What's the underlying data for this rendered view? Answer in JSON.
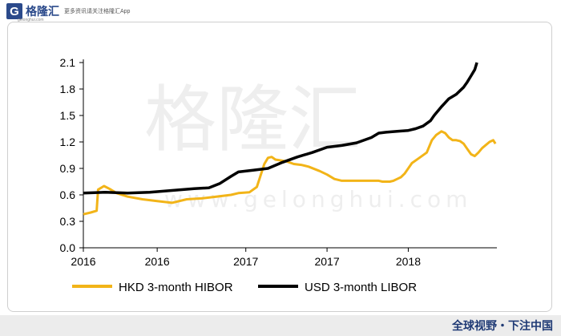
{
  "brand": {
    "name": "格隆汇",
    "tagline": "更多资讯请关注格隆汇App",
    "url": "gelonghui.com"
  },
  "watermark": {
    "cn": "格隆汇",
    "en": "www.gelonghui.com"
  },
  "footer": {
    "slogan": "全球视野・下注中国"
  },
  "chart_data": {
    "type": "line",
    "title": "",
    "xlabel": "",
    "ylabel": "",
    "ylim": [
      0,
      2.1
    ],
    "yticks": [
      "0.0",
      "0.3",
      "0.6",
      "0.9",
      "1.2",
      "1.5",
      "1.8",
      "2.1"
    ],
    "xticks": [
      "2016",
      "2016",
      "2017",
      "2017",
      "2018"
    ],
    "grid": false,
    "legend_position": "bottom",
    "colors": {
      "hibor": "#f2b418",
      "libor": "#000000"
    },
    "series": [
      {
        "name": "HKD 3-month HIBOR",
        "x": [
          0.0,
          0.1,
          0.18,
          0.2,
          0.28,
          0.35,
          0.45,
          0.6,
          0.8,
          1.0,
          1.2,
          1.4,
          1.6,
          1.8,
          2.0,
          2.1,
          2.25,
          2.35,
          2.45,
          2.5,
          2.55,
          2.6,
          2.75,
          2.85,
          2.95,
          3.05,
          3.2,
          3.3,
          3.4,
          3.5,
          3.6,
          3.75,
          3.85,
          3.95,
          4.0,
          4.05,
          4.1,
          4.15,
          4.2,
          4.25,
          4.3,
          4.35,
          4.45,
          4.55,
          4.65,
          4.72,
          4.78,
          4.85,
          4.9,
          4.95,
          5.0,
          5.05,
          5.1,
          5.15,
          5.2,
          5.25,
          5.3,
          5.35,
          5.4,
          5.5,
          5.55,
          5.58
        ],
        "values": [
          0.38,
          0.4,
          0.42,
          0.66,
          0.7,
          0.67,
          0.62,
          0.58,
          0.55,
          0.53,
          0.51,
          0.55,
          0.56,
          0.58,
          0.6,
          0.62,
          0.63,
          0.69,
          0.95,
          1.02,
          1.03,
          1.0,
          0.98,
          0.95,
          0.94,
          0.92,
          0.87,
          0.83,
          0.78,
          0.76,
          0.76,
          0.76,
          0.76,
          0.76,
          0.76,
          0.75,
          0.75,
          0.75,
          0.76,
          0.78,
          0.8,
          0.84,
          0.96,
          1.02,
          1.08,
          1.22,
          1.28,
          1.32,
          1.3,
          1.25,
          1.22,
          1.22,
          1.21,
          1.18,
          1.12,
          1.06,
          1.04,
          1.08,
          1.13,
          1.2,
          1.22,
          1.18
        ]
      },
      {
        "name": "USD 3-month LIBOR",
        "x": [
          0.0,
          0.3,
          0.6,
          0.9,
          1.2,
          1.5,
          1.7,
          1.85,
          2.0,
          2.1,
          2.3,
          2.5,
          2.7,
          2.9,
          3.1,
          3.3,
          3.5,
          3.7,
          3.9,
          4.0,
          4.1,
          4.25,
          4.4,
          4.5,
          4.6,
          4.7,
          4.75,
          4.85,
          4.95,
          5.05,
          5.1,
          5.15,
          5.2,
          5.25,
          5.3,
          5.33
        ],
        "values": [
          0.62,
          0.63,
          0.62,
          0.63,
          0.65,
          0.67,
          0.68,
          0.73,
          0.81,
          0.86,
          0.88,
          0.9,
          0.97,
          1.03,
          1.08,
          1.14,
          1.16,
          1.19,
          1.25,
          1.3,
          1.31,
          1.32,
          1.33,
          1.35,
          1.38,
          1.44,
          1.5,
          1.6,
          1.69,
          1.74,
          1.78,
          1.82,
          1.88,
          1.95,
          2.02,
          2.1
        ]
      }
    ]
  }
}
